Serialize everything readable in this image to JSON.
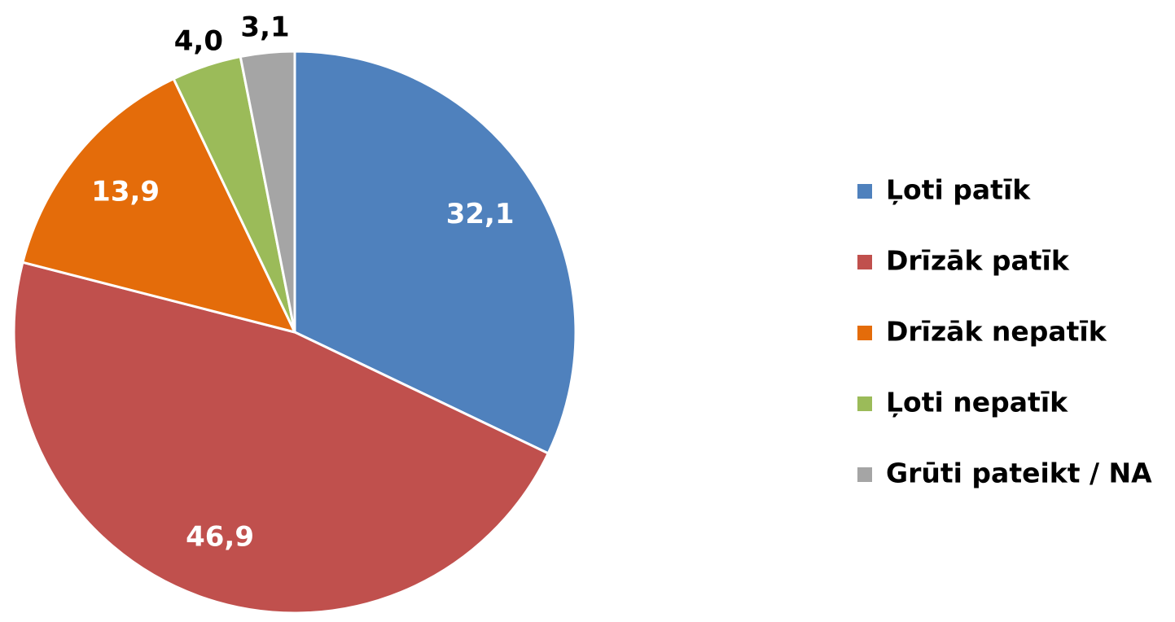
{
  "chart_data": {
    "type": "pie",
    "categories": [
      "Ļoti patīk",
      "Drīzāk patīk",
      "Drīzāk nepatīk",
      "Ļoti nepatīk",
      "Grūti pateikt / NA"
    ],
    "values": [
      32.1,
      46.9,
      13.9,
      4.0,
      3.1
    ],
    "value_labels": [
      "32,1",
      "46,9",
      "13,9",
      "4,0",
      "3,1"
    ],
    "colors": [
      "#4f81bd",
      "#c0504d",
      "#e46c0a",
      "#9bbb59",
      "#a5a5a5"
    ],
    "legend": "right"
  }
}
